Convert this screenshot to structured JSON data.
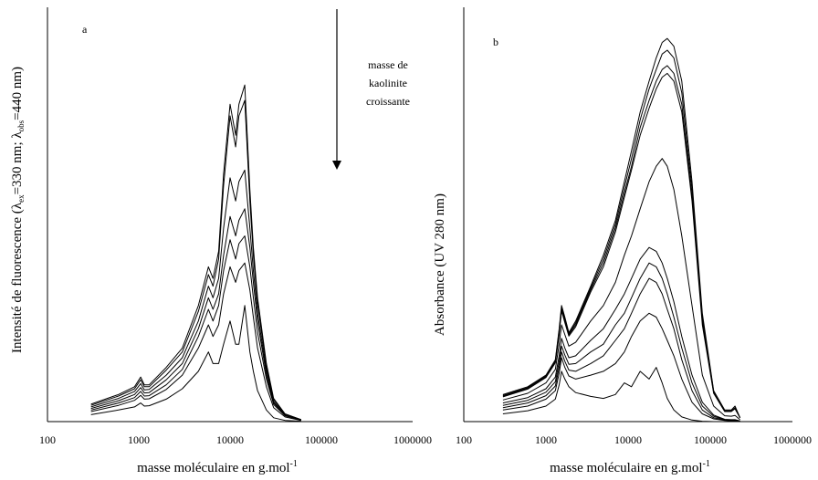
{
  "chart_data": [
    {
      "type": "line",
      "panel_letter": "a",
      "xlabel": "masse moléculaire en g.mol",
      "xlabel_superscript": "-1",
      "ylabel_parts": [
        "Intensité de fluorescence (λ",
        "ex",
        "=330 nm; λ",
        "obs",
        "=440 nm)"
      ],
      "x_scale": "log",
      "xlim": [
        100,
        1000000
      ],
      "ylim": [
        0,
        1
      ],
      "xtick_labels": [
        "100",
        "1000",
        "10000",
        "100000",
        "1000000"
      ],
      "grid": false,
      "annotation": {
        "lines": [
          "masse de",
          "kaolinite",
          "croissante"
        ],
        "arrow": "down"
      },
      "x": [
        300,
        600,
        900,
        1050,
        1150,
        1300,
        2000,
        3000,
        4500,
        5800,
        6500,
        7500,
        8500,
        10000,
        11500,
        12500,
        14500,
        16500,
        18000,
        20000,
        25000,
        30000,
        40000,
        60000
      ],
      "series": [
        {
          "values": [
            0.045,
            0.07,
            0.09,
            0.115,
            0.095,
            0.095,
            0.14,
            0.19,
            0.3,
            0.4,
            0.37,
            0.44,
            0.64,
            0.82,
            0.74,
            0.82,
            0.87,
            0.6,
            0.45,
            0.32,
            0.15,
            0.06,
            0.02,
            0.005
          ]
        },
        {
          "values": [
            0.042,
            0.066,
            0.085,
            0.108,
            0.09,
            0.09,
            0.133,
            0.18,
            0.285,
            0.38,
            0.35,
            0.42,
            0.61,
            0.79,
            0.71,
            0.79,
            0.83,
            0.57,
            0.43,
            0.305,
            0.14,
            0.057,
            0.019,
            0.005
          ]
        },
        {
          "values": [
            0.038,
            0.06,
            0.078,
            0.098,
            0.082,
            0.083,
            0.12,
            0.165,
            0.26,
            0.35,
            0.32,
            0.37,
            0.5,
            0.63,
            0.57,
            0.62,
            0.65,
            0.5,
            0.39,
            0.28,
            0.13,
            0.052,
            0.017,
            0.004
          ]
        },
        {
          "values": [
            0.034,
            0.054,
            0.07,
            0.088,
            0.074,
            0.075,
            0.108,
            0.15,
            0.24,
            0.32,
            0.29,
            0.33,
            0.43,
            0.53,
            0.48,
            0.52,
            0.55,
            0.45,
            0.36,
            0.26,
            0.12,
            0.048,
            0.016,
            0.004
          ]
        },
        {
          "values": [
            0.03,
            0.048,
            0.062,
            0.078,
            0.066,
            0.067,
            0.095,
            0.135,
            0.22,
            0.29,
            0.26,
            0.3,
            0.39,
            0.47,
            0.42,
            0.46,
            0.48,
            0.4,
            0.32,
            0.23,
            0.11,
            0.044,
            0.015,
            0.004
          ]
        },
        {
          "values": [
            0.026,
            0.042,
            0.055,
            0.068,
            0.058,
            0.059,
            0.083,
            0.12,
            0.19,
            0.25,
            0.22,
            0.25,
            0.33,
            0.4,
            0.36,
            0.39,
            0.41,
            0.34,
            0.27,
            0.19,
            0.09,
            0.036,
            0.012,
            0.003
          ]
        },
        {
          "values": [
            0.018,
            0.03,
            0.038,
            0.048,
            0.04,
            0.041,
            0.058,
            0.085,
            0.13,
            0.18,
            0.15,
            0.15,
            0.2,
            0.26,
            0.2,
            0.2,
            0.3,
            0.18,
            0.13,
            0.08,
            0.03,
            0.01,
            0.003,
            0.001
          ]
        }
      ]
    },
    {
      "type": "line",
      "panel_letter": "b",
      "xlabel": "masse moléculaire en g.mol",
      "xlabel_superscript": "-1",
      "ylabel_parts": [
        "Absorbance (UV 280 nm)"
      ],
      "x_scale": "log",
      "xlim": [
        100,
        1000000
      ],
      "ylim": [
        0,
        1
      ],
      "xtick_labels": [
        "100",
        "1000",
        "10000",
        "100000",
        "1000000"
      ],
      "grid": false,
      "x": [
        300,
        600,
        1000,
        1300,
        1450,
        1550,
        1700,
        1900,
        2300,
        3500,
        5000,
        7000,
        9000,
        11000,
        14000,
        18000,
        22000,
        26000,
        30000,
        36000,
        45000,
        60000,
        80000,
        110000,
        150000,
        180000,
        200000,
        230000
      ],
      "series": [
        {
          "values": [
            0.07,
            0.09,
            0.12,
            0.16,
            0.24,
            0.3,
            0.27,
            0.23,
            0.26,
            0.35,
            0.43,
            0.52,
            0.62,
            0.7,
            0.8,
            0.88,
            0.94,
            0.98,
            0.99,
            0.97,
            0.88,
            0.62,
            0.28,
            0.08,
            0.03,
            0.03,
            0.04,
            0.01
          ]
        },
        {
          "values": [
            0.068,
            0.088,
            0.118,
            0.157,
            0.235,
            0.295,
            0.265,
            0.227,
            0.255,
            0.345,
            0.42,
            0.51,
            0.605,
            0.68,
            0.78,
            0.86,
            0.91,
            0.95,
            0.96,
            0.94,
            0.85,
            0.6,
            0.27,
            0.078,
            0.028,
            0.028,
            0.036,
            0.01
          ]
        },
        {
          "values": [
            0.066,
            0.086,
            0.116,
            0.154,
            0.23,
            0.29,
            0.26,
            0.224,
            0.25,
            0.34,
            0.41,
            0.5,
            0.59,
            0.66,
            0.76,
            0.83,
            0.88,
            0.91,
            0.92,
            0.9,
            0.82,
            0.58,
            0.26,
            0.075,
            0.027,
            0.027,
            0.034,
            0.01
          ]
        },
        {
          "values": [
            0.064,
            0.084,
            0.114,
            0.152,
            0.226,
            0.286,
            0.256,
            0.221,
            0.245,
            0.335,
            0.4,
            0.49,
            0.58,
            0.65,
            0.74,
            0.81,
            0.86,
            0.89,
            0.9,
            0.88,
            0.8,
            0.57,
            0.25,
            0.073,
            0.026,
            0.026,
            0.033,
            0.01
          ]
        },
        {
          "values": [
            0.056,
            0.073,
            0.1,
            0.135,
            0.2,
            0.25,
            0.225,
            0.195,
            0.205,
            0.26,
            0.3,
            0.36,
            0.43,
            0.48,
            0.55,
            0.62,
            0.66,
            0.68,
            0.66,
            0.6,
            0.48,
            0.3,
            0.12,
            0.04,
            0.015,
            0.014,
            0.016,
            0.005
          ]
        },
        {
          "values": [
            0.048,
            0.062,
            0.085,
            0.115,
            0.17,
            0.215,
            0.19,
            0.165,
            0.17,
            0.21,
            0.24,
            0.29,
            0.33,
            0.37,
            0.42,
            0.45,
            0.44,
            0.41,
            0.37,
            0.31,
            0.22,
            0.12,
            0.05,
            0.017,
            0.006,
            0.005,
            0.005,
            0.002
          ]
        },
        {
          "values": [
            0.042,
            0.055,
            0.076,
            0.103,
            0.155,
            0.195,
            0.172,
            0.148,
            0.15,
            0.18,
            0.2,
            0.25,
            0.28,
            0.32,
            0.37,
            0.41,
            0.4,
            0.37,
            0.33,
            0.27,
            0.19,
            0.1,
            0.04,
            0.014,
            0.005,
            0.004,
            0.004,
            0.001
          ]
        },
        {
          "values": [
            0.036,
            0.048,
            0.067,
            0.092,
            0.14,
            0.18,
            0.156,
            0.133,
            0.13,
            0.15,
            0.17,
            0.21,
            0.24,
            0.28,
            0.33,
            0.37,
            0.36,
            0.33,
            0.29,
            0.24,
            0.16,
            0.08,
            0.03,
            0.01,
            0.004,
            0.003,
            0.003,
            0.001
          ]
        },
        {
          "values": [
            0.03,
            0.04,
            0.058,
            0.08,
            0.125,
            0.165,
            0.14,
            0.118,
            0.11,
            0.12,
            0.13,
            0.15,
            0.18,
            0.22,
            0.26,
            0.28,
            0.27,
            0.24,
            0.21,
            0.17,
            0.11,
            0.05,
            0.02,
            0.007,
            0.003,
            0.002,
            0.002,
            0.001
          ]
        },
        {
          "values": [
            0.02,
            0.028,
            0.04,
            0.058,
            0.095,
            0.13,
            0.11,
            0.09,
            0.075,
            0.065,
            0.06,
            0.07,
            0.1,
            0.09,
            0.13,
            0.11,
            0.14,
            0.1,
            0.06,
            0.03,
            0.012,
            0.004,
            0.001,
            0.0,
            0.0,
            0.0,
            0.0,
            0.0
          ]
        }
      ]
    }
  ]
}
